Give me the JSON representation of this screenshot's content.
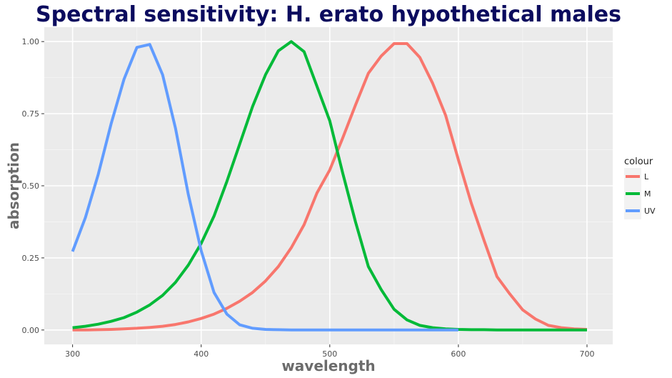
{
  "chart_data": {
    "type": "line",
    "title": "Spectral sensitivity: H. erato hypothetical males",
    "xlabel": "wavelength",
    "ylabel": "absorption",
    "xlim": [
      278,
      720
    ],
    "ylim": [
      -0.05,
      1.05
    ],
    "xticks": [
      300,
      400,
      500,
      600,
      700
    ],
    "yticks": [
      0.0,
      0.25,
      0.5,
      0.75,
      1.0
    ],
    "xtick_labels": [
      "300",
      "400",
      "500",
      "600",
      "700"
    ],
    "ytick_labels": [
      "0.00",
      "0.25",
      "0.50",
      "0.75",
      "1.00"
    ],
    "grid": true,
    "legend": {
      "title": "colour",
      "position": "right"
    },
    "series": [
      {
        "name": "L",
        "color": "#f8766d",
        "x": [
          300,
          310,
          320,
          330,
          340,
          350,
          360,
          370,
          380,
          390,
          400,
          410,
          420,
          430,
          440,
          450,
          460,
          470,
          480,
          490,
          500,
          510,
          520,
          530,
          540,
          550,
          560,
          570,
          580,
          590,
          600,
          610,
          620,
          630,
          640,
          650,
          660,
          670,
          680,
          690,
          700
        ],
        "y": [
          0.0,
          0.0,
          0.001,
          0.002,
          0.004,
          0.006,
          0.009,
          0.013,
          0.019,
          0.028,
          0.04,
          0.055,
          0.075,
          0.1,
          0.13,
          0.17,
          0.22,
          0.285,
          0.365,
          0.475,
          0.555,
          0.665,
          0.78,
          0.89,
          0.95,
          0.993,
          0.993,
          0.945,
          0.855,
          0.745,
          0.59,
          0.44,
          0.31,
          0.185,
          0.125,
          0.07,
          0.038,
          0.016,
          0.008,
          0.004,
          0.002
        ]
      },
      {
        "name": "M",
        "color": "#00ba38",
        "x": [
          300,
          310,
          320,
          330,
          340,
          350,
          360,
          370,
          380,
          390,
          400,
          410,
          420,
          430,
          440,
          450,
          460,
          470,
          480,
          490,
          500,
          510,
          520,
          530,
          540,
          550,
          560,
          570,
          580,
          590,
          600,
          610,
          620,
          630,
          640,
          650,
          660,
          670,
          680,
          690,
          700
        ],
        "y": [
          0.008,
          0.013,
          0.02,
          0.03,
          0.043,
          0.062,
          0.087,
          0.12,
          0.165,
          0.225,
          0.3,
          0.395,
          0.515,
          0.645,
          0.775,
          0.885,
          0.968,
          1.0,
          0.965,
          0.845,
          0.725,
          0.545,
          0.375,
          0.22,
          0.14,
          0.072,
          0.035,
          0.016,
          0.008,
          0.004,
          0.002,
          0.001,
          0.001,
          0.0,
          0.0,
          0.0,
          0.0,
          0.0,
          0.0,
          0.0,
          0.0
        ]
      },
      {
        "name": "UV",
        "color": "#619cff",
        "x": [
          300,
          310,
          320,
          330,
          340,
          350,
          360,
          370,
          380,
          390,
          400,
          410,
          420,
          430,
          440,
          450,
          460,
          470,
          480,
          490,
          500,
          510,
          520,
          530,
          540,
          550,
          560,
          570,
          580,
          590,
          600
        ],
        "y": [
          0.272,
          0.39,
          0.54,
          0.715,
          0.87,
          0.98,
          0.99,
          0.885,
          0.7,
          0.47,
          0.275,
          0.13,
          0.055,
          0.018,
          0.006,
          0.002,
          0.001,
          0.0,
          0.0,
          0.0,
          0.0,
          0.0,
          0.0,
          0.0,
          0.0,
          0.0,
          0.0,
          0.0,
          0.0,
          0.0,
          0.0
        ]
      }
    ]
  }
}
